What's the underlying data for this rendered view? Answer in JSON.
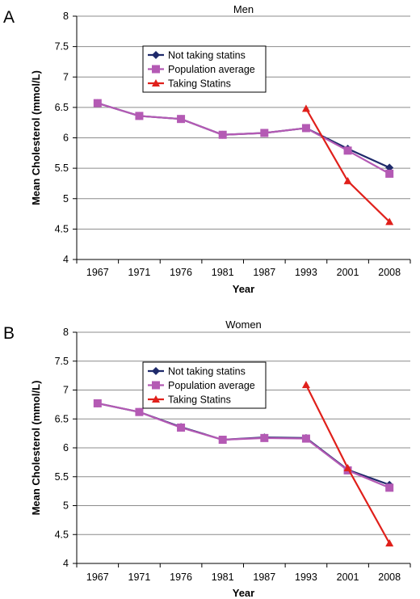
{
  "chart_data": [
    {
      "type": "line",
      "panel_label": "A",
      "title": "Men",
      "xlabel": "Year",
      "ylabel": "Mean Cholesterol (mmol/L)",
      "categories": [
        "1967",
        "1971",
        "1976",
        "1981",
        "1987",
        "1993",
        "2001",
        "2008"
      ],
      "ylim": [
        4,
        8
      ],
      "yticks": [
        "4",
        "4.5",
        "5",
        "5.5",
        "6",
        "6.5",
        "7",
        "7.5",
        "8"
      ],
      "grid": "horizontal",
      "legend_position": "top-left",
      "series": [
        {
          "name": "Not taking statins",
          "color": "#1f2a6b",
          "marker": "diamond",
          "values": [
            6.57,
            6.36,
            6.31,
            6.05,
            6.08,
            6.16,
            5.82,
            5.51
          ]
        },
        {
          "name": "Population average",
          "color": "#b45ab4",
          "marker": "square",
          "values": [
            6.57,
            6.36,
            6.31,
            6.05,
            6.08,
            6.16,
            5.79,
            5.41
          ]
        },
        {
          "name": "Taking Statins",
          "color": "#e0201b",
          "marker": "triangle",
          "values": [
            null,
            null,
            null,
            null,
            null,
            6.48,
            5.29,
            4.62
          ]
        }
      ]
    },
    {
      "type": "line",
      "panel_label": "B",
      "title": "Women",
      "xlabel": "Year",
      "ylabel": "Mean Cholesterol (mmol/L)",
      "categories": [
        "1967",
        "1971",
        "1976",
        "1981",
        "1987",
        "1993",
        "2001",
        "2008"
      ],
      "ylim": [
        4,
        8
      ],
      "yticks": [
        "4",
        "4.5",
        "5",
        "5.5",
        "6",
        "6.5",
        "7",
        "7.5",
        "8"
      ],
      "grid": "horizontal",
      "legend_position": "top-left",
      "series": [
        {
          "name": "Not taking statins",
          "color": "#1f2a6b",
          "marker": "diamond",
          "values": [
            6.77,
            6.62,
            6.36,
            6.14,
            6.18,
            6.17,
            5.62,
            5.36
          ]
        },
        {
          "name": "Population average",
          "color": "#b45ab4",
          "marker": "square",
          "values": [
            6.77,
            6.62,
            6.35,
            6.14,
            6.17,
            6.16,
            5.61,
            5.31
          ]
        },
        {
          "name": "Taking Statins",
          "color": "#e0201b",
          "marker": "triangle",
          "values": [
            null,
            null,
            null,
            null,
            null,
            7.09,
            5.65,
            4.35
          ]
        }
      ]
    }
  ]
}
